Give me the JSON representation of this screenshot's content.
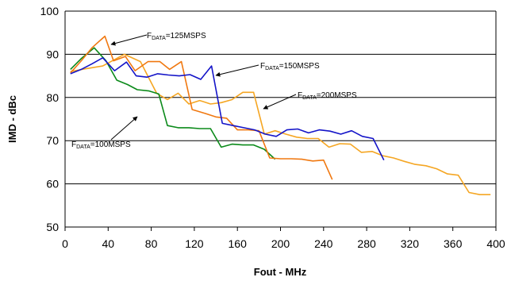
{
  "chart_data": {
    "type": "line",
    "title": "",
    "xlabel": "Fout - MHz",
    "ylabel": "IMD - dBc",
    "xlim": [
      0,
      400
    ],
    "ylim": [
      50,
      100
    ],
    "xticks": [
      "0",
      "40",
      "80",
      "120",
      "160",
      "200",
      "240",
      "280",
      "320",
      "360",
      "400"
    ],
    "yticks": [
      "50",
      "60",
      "70",
      "80",
      "90",
      "100"
    ],
    "grid": "horizontal",
    "legend": "none",
    "series": [
      {
        "name": "",
        "color": "#0B8A1A",
        "annotation": {
          "prefix": "F",
          "sub": "DATA",
          "suffix": "=100MSPS"
        },
        "x": [
          5,
          15,
          27,
          38,
          48,
          58,
          67,
          78,
          87,
          95,
          105,
          115,
          125,
          135,
          145,
          155,
          165,
          175,
          185,
          195
        ],
        "y": [
          86.5,
          89,
          91.5,
          88.5,
          84,
          83,
          81.8,
          81.5,
          80.8,
          73.5,
          73,
          73,
          72.8,
          72.8,
          68.5,
          69.2,
          69,
          69,
          68,
          65.7
        ]
      },
      {
        "name": "",
        "color": "#F07810",
        "annotation": {
          "prefix": "F",
          "sub": "DATA",
          "suffix": "=125MSPS"
        },
        "x": [
          5,
          15,
          25,
          37,
          45,
          56,
          65,
          77,
          88,
          97,
          108,
          118,
          130,
          140,
          150,
          160,
          170,
          180,
          190,
          200,
          210,
          220,
          230,
          240,
          248
        ],
        "y": [
          85.7,
          88.5,
          91.5,
          94.2,
          88.5,
          89.5,
          86.2,
          88.3,
          88.3,
          86.5,
          88.3,
          77.2,
          76.3,
          75.5,
          75.2,
          72.5,
          72.5,
          72.3,
          66,
          65.8,
          65.8,
          65.7,
          65.3,
          65.5,
          61
        ]
      },
      {
        "name": "",
        "color": "#1414C8",
        "annotation": {
          "prefix": "F",
          "sub": "DATA",
          "suffix": "=150MSPS"
        },
        "x": [
          5,
          15,
          25,
          35,
          46,
          57,
          66,
          76,
          86,
          96,
          106,
          116,
          126,
          136,
          146,
          156,
          166,
          176,
          186,
          196,
          206,
          216,
          226,
          236,
          246,
          256,
          266,
          276,
          286,
          296
        ],
        "y": [
          85.5,
          86.5,
          87.8,
          89.2,
          86.2,
          88.2,
          85,
          84.7,
          85.5,
          85.2,
          85,
          85.3,
          84.2,
          87.3,
          74,
          73.5,
          73,
          72.5,
          71.5,
          71,
          72.5,
          72.7,
          71.8,
          72.5,
          72.2,
          71.5,
          72.3,
          71,
          70.5,
          65.5
        ]
      },
      {
        "name": "",
        "color": "#F5A623",
        "annotation": {
          "prefix": "F",
          "sub": "DATA",
          "suffix": "=200MSPS"
        },
        "x": [
          5,
          20,
          35,
          55,
          70,
          85,
          95,
          105,
          115,
          125,
          135,
          145,
          155,
          165,
          175,
          185,
          195,
          205,
          215,
          225,
          235,
          245,
          255,
          265,
          275,
          285,
          295,
          305,
          315,
          325,
          335,
          345,
          355,
          365,
          375,
          385,
          395
        ],
        "y": [
          86,
          86.7,
          87.3,
          90,
          88.3,
          81,
          79.5,
          81,
          78.5,
          79.3,
          78.5,
          78.8,
          79.5,
          81.2,
          81.2,
          71.5,
          72.3,
          71.5,
          70.8,
          70.5,
          70.5,
          68.5,
          69.3,
          69.2,
          67.3,
          67.5,
          66.5,
          66,
          65.2,
          64.5,
          64.2,
          63.5,
          62.3,
          62,
          58,
          57.5,
          57.5
        ]
      }
    ]
  }
}
